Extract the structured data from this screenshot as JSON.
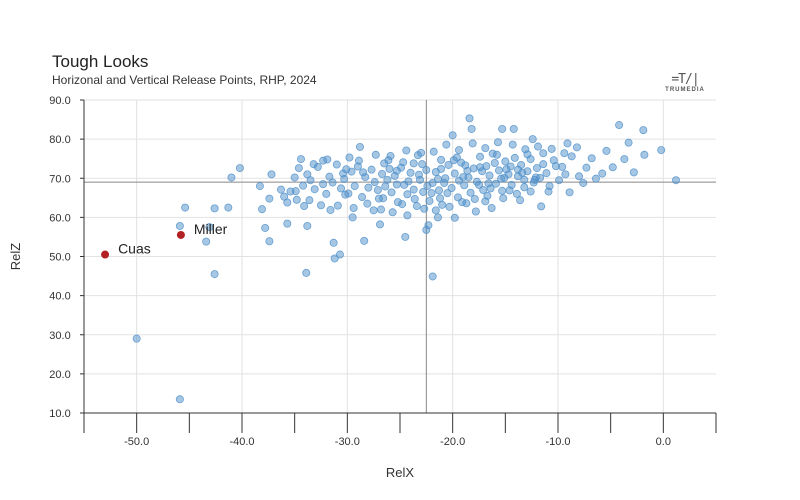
{
  "chart_data": {
    "type": "scatter",
    "title": "Tough Looks",
    "subtitle": "Horizonal and Vertical Release Points, RHP, 2024",
    "xlabel": "RelX",
    "ylabel": "RelZ",
    "xlim": [
      -55,
      5
    ],
    "ylim": [
      10,
      90
    ],
    "x_ticks": [
      -50,
      -40,
      -30,
      -20,
      -10,
      0
    ],
    "x_tick_labels": [
      "-50.0",
      "-40.0",
      "-30.0",
      "-20.0",
      "-10.0",
      "0.0"
    ],
    "y_ticks": [
      10,
      20,
      30,
      40,
      50,
      60,
      70,
      80,
      90
    ],
    "y_tick_labels": [
      "10.0",
      "20.0",
      "30.0",
      "40.0",
      "50.0",
      "60.0",
      "70.0",
      "80.0",
      "90.0"
    ],
    "grid": true,
    "reference_lines": {
      "x": -22.5,
      "y": 69
    },
    "colors": {
      "points": "#4d8fc9",
      "highlight": "#b22222",
      "grid": "#e2e2e2",
      "reference": "#888888"
    },
    "highlighted": [
      {
        "label": "Cuas",
        "x": -53,
        "y": 50.5
      },
      {
        "label": "Miller",
        "x": -45.8,
        "y": 55.5
      }
    ],
    "points": [
      [
        -50.0,
        29.0
      ],
      [
        -45.9,
        13.5
      ],
      [
        -45.9,
        57.8
      ],
      [
        -45.4,
        62.5
      ],
      [
        -43.4,
        53.8
      ],
      [
        -43.1,
        57.5
      ],
      [
        -42.6,
        45.5
      ],
      [
        -42.6,
        62.3
      ],
      [
        -41.3,
        62.5
      ],
      [
        -41.0,
        70.2
      ],
      [
        -40.2,
        72.6
      ],
      [
        -38.3,
        68.0
      ],
      [
        -38.1,
        62.1
      ],
      [
        -37.8,
        57.3
      ],
      [
        -37.4,
        53.9
      ],
      [
        -37.4,
        64.8
      ],
      [
        -37.2,
        71.0
      ],
      [
        -35.7,
        58.4
      ],
      [
        -35.4,
        66.6
      ],
      [
        -34.8,
        64.5
      ],
      [
        -34.4,
        74.9
      ],
      [
        -34.1,
        62.9
      ],
      [
        -33.9,
        45.8
      ],
      [
        -33.8,
        57.8
      ],
      [
        -33.2,
        73.6
      ],
      [
        -32.3,
        74.5
      ],
      [
        -31.6,
        61.9
      ],
      [
        -31.3,
        53.5
      ],
      [
        -31.2,
        49.5
      ],
      [
        -30.7,
        50.5
      ],
      [
        -30.4,
        71.2
      ],
      [
        -30.2,
        65.8
      ],
      [
        -29.5,
        60.0
      ],
      [
        -28.8,
        78.0
      ],
      [
        -28.4,
        54.0
      ],
      [
        -27.5,
        61.8
      ],
      [
        -26.9,
        58.2
      ],
      [
        -26.6,
        64.9
      ],
      [
        -26.0,
        72.4
      ],
      [
        -25.3,
        68.4
      ],
      [
        -24.5,
        55.0
      ],
      [
        -24.3,
        60.5
      ],
      [
        -23.7,
        73.8
      ],
      [
        -23.0,
        76.5
      ],
      [
        -22.5,
        56.8
      ],
      [
        -22.3,
        58.0
      ],
      [
        -22.0,
        66.2
      ],
      [
        -21.9,
        44.9
      ],
      [
        -21.6,
        61.8
      ],
      [
        -21.4,
        60.0
      ],
      [
        -21.1,
        74.7
      ],
      [
        -20.8,
        68.8
      ],
      [
        -20.0,
        81.0
      ],
      [
        -19.8,
        59.9
      ],
      [
        -19.4,
        77.2
      ],
      [
        -19.0,
        70.3
      ],
      [
        -18.7,
        63.6
      ],
      [
        -18.4,
        85.3
      ],
      [
        -18.2,
        82.6
      ],
      [
        -17.8,
        61.5
      ],
      [
        -17.4,
        72.8
      ],
      [
        -16.9,
        64.1
      ],
      [
        -16.6,
        68.7
      ],
      [
        -16.3,
        62.4
      ],
      [
        -15.8,
        76.0
      ],
      [
        -15.3,
        82.6
      ],
      [
        -15.1,
        70.1
      ],
      [
        -14.6,
        66.9
      ],
      [
        -14.2,
        82.6
      ],
      [
        -13.8,
        72.2
      ],
      [
        -13.6,
        64.4
      ],
      [
        -13.2,
        69.6
      ],
      [
        -12.9,
        76.1
      ],
      [
        -12.4,
        80.0
      ],
      [
        -12.1,
        70.2
      ],
      [
        -11.6,
        62.8
      ],
      [
        -11.4,
        73.6
      ],
      [
        -10.9,
        66.6
      ],
      [
        -10.4,
        74.6
      ],
      [
        -9.9,
        69.5
      ],
      [
        -9.6,
        72.9
      ],
      [
        -9.1,
        78.9
      ],
      [
        -8.9,
        66.4
      ],
      [
        -8.7,
        75.6
      ],
      [
        -8.0,
        70.5
      ],
      [
        -7.6,
        68.8
      ],
      [
        -7.3,
        72.7
      ],
      [
        -6.8,
        75.1
      ],
      [
        -6.4,
        69.9
      ],
      [
        -5.8,
        71.2
      ],
      [
        -5.4,
        77.0
      ],
      [
        -4.8,
        72.8
      ],
      [
        -4.2,
        83.6
      ],
      [
        -3.7,
        74.9
      ],
      [
        -3.3,
        79.1
      ],
      [
        -2.8,
        71.5
      ],
      [
        -1.9,
        82.3
      ],
      [
        -1.8,
        76.0
      ],
      [
        -0.2,
        77.2
      ],
      [
        1.2,
        69.5
      ],
      [
        -35.0,
        70.2
      ],
      [
        -34.6,
        72.6
      ],
      [
        -34.2,
        68.1
      ],
      [
        -33.8,
        71.0
      ],
      [
        -33.5,
        69.5
      ],
      [
        -33.1,
        67.2
      ],
      [
        -32.8,
        72.9
      ],
      [
        -32.3,
        68.5
      ],
      [
        -32.0,
        66.0
      ],
      [
        -31.7,
        70.4
      ],
      [
        -31.4,
        68.9
      ],
      [
        -31.0,
        73.5
      ],
      [
        -30.6,
        67.4
      ],
      [
        -30.3,
        69.8
      ],
      [
        -29.9,
        66.1
      ],
      [
        -29.6,
        71.7
      ],
      [
        -29.3,
        68.0
      ],
      [
        -29.0,
        73.0
      ],
      [
        -28.6,
        65.2
      ],
      [
        -28.3,
        70.3
      ],
      [
        -28.0,
        67.6
      ],
      [
        -27.7,
        72.2
      ],
      [
        -27.4,
        69.0
      ],
      [
        -27.0,
        64.8
      ],
      [
        -26.7,
        71.1
      ],
      [
        -26.4,
        67.9
      ],
      [
        -26.1,
        74.6
      ],
      [
        -25.8,
        66.4
      ],
      [
        -25.5,
        70.6
      ],
      [
        -25.2,
        63.9
      ],
      [
        -24.9,
        72.7
      ],
      [
        -24.6,
        68.3
      ],
      [
        -24.3,
        65.9
      ],
      [
        -24.0,
        71.4
      ],
      [
        -23.7,
        67.1
      ],
      [
        -23.4,
        62.9
      ],
      [
        -23.1,
        69.6
      ],
      [
        -22.8,
        66.5
      ],
      [
        -22.5,
        72.1
      ],
      [
        -22.2,
        64.2
      ],
      [
        -21.9,
        68.8
      ],
      [
        -21.6,
        71.6
      ],
      [
        -21.3,
        66.9
      ],
      [
        -21.0,
        63.2
      ],
      [
        -20.7,
        70.0
      ],
      [
        -20.4,
        73.4
      ],
      [
        -20.1,
        67.5
      ],
      [
        -19.8,
        71.2
      ],
      [
        -19.5,
        65.1
      ],
      [
        -19.2,
        74.0
      ],
      [
        -18.9,
        68.2
      ],
      [
        -18.6,
        71.9
      ],
      [
        -18.3,
        66.3
      ],
      [
        -18.0,
        72.5
      ],
      [
        -17.7,
        69.1
      ],
      [
        -17.4,
        75.5
      ],
      [
        -17.1,
        67.0
      ],
      [
        -16.8,
        73.1
      ],
      [
        -16.5,
        70.7
      ],
      [
        -16.2,
        76.3
      ],
      [
        -15.9,
        68.6
      ],
      [
        -15.6,
        72.0
      ],
      [
        -15.3,
        66.8
      ],
      [
        -15.0,
        74.3
      ],
      [
        -14.7,
        71.0
      ],
      [
        -14.4,
        68.3
      ],
      [
        -14.1,
        75.2
      ],
      [
        -13.8,
        70.5
      ],
      [
        -13.5,
        73.4
      ],
      [
        -13.2,
        67.7
      ],
      [
        -12.9,
        71.8
      ],
      [
        -12.6,
        74.9
      ],
      [
        -12.3,
        68.9
      ],
      [
        -12.0,
        72.6
      ],
      [
        -11.7,
        70.1
      ],
      [
        -11.4,
        76.4
      ],
      [
        -11.1,
        71.3
      ],
      [
        -10.8,
        68.0
      ],
      [
        -33.6,
        64.4
      ],
      [
        -30.9,
        63.0
      ],
      [
        -29.4,
        62.4
      ],
      [
        -28.1,
        63.5
      ],
      [
        -26.8,
        62.0
      ],
      [
        -25.7,
        61.3
      ],
      [
        -24.8,
        63.4
      ],
      [
        -23.6,
        64.7
      ],
      [
        -22.7,
        62.2
      ],
      [
        -21.2,
        64.9
      ],
      [
        -20.3,
        62.7
      ],
      [
        -19.1,
        63.9
      ],
      [
        -17.9,
        64.7
      ],
      [
        -16.7,
        65.5
      ],
      [
        -15.2,
        64.9
      ],
      [
        -13.9,
        66.0
      ],
      [
        -12.6,
        66.6
      ],
      [
        -29.8,
        75.3
      ],
      [
        -28.9,
        74.5
      ],
      [
        -27.3,
        76.0
      ],
      [
        -25.9,
        75.7
      ],
      [
        -24.4,
        77.1
      ],
      [
        -23.3,
        75.9
      ],
      [
        -21.8,
        76.8
      ],
      [
        -20.6,
        78.6
      ],
      [
        -19.6,
        75.3
      ],
      [
        -18.1,
        78.9
      ],
      [
        -16.9,
        77.7
      ],
      [
        -15.7,
        79.2
      ],
      [
        -14.3,
        78.6
      ],
      [
        -13.1,
        77.4
      ],
      [
        -11.9,
        78.1
      ],
      [
        -10.6,
        77.5
      ],
      [
        -9.4,
        76.4
      ],
      [
        -8.2,
        77.9
      ],
      [
        -36.3,
        67.1
      ],
      [
        -36.0,
        65.3
      ],
      [
        -35.7,
        63.8
      ],
      [
        -34.9,
        66.7
      ],
      [
        -32.5,
        63.1
      ],
      [
        -27.1,
        67.0
      ],
      [
        -26.2,
        69.6
      ],
      [
        -25.3,
        71.9
      ],
      [
        -24.2,
        69.2
      ],
      [
        -23.2,
        70.9
      ],
      [
        -22.4,
        68.0
      ],
      [
        -21.4,
        69.8
      ],
      [
        -20.5,
        66.2
      ],
      [
        -19.4,
        69.4
      ],
      [
        -18.5,
        70.2
      ],
      [
        -17.5,
        68.3
      ],
      [
        -16.4,
        67.4
      ],
      [
        -15.4,
        69.9
      ],
      [
        -14.5,
        73.0
      ],
      [
        -13.4,
        71.4
      ],
      [
        -12.2,
        69.6
      ],
      [
        -10.2,
        73.1
      ],
      [
        -9.3,
        71.0
      ],
      [
        -31.9,
        74.8
      ],
      [
        -30.1,
        72.3
      ],
      [
        -28.5,
        71.5
      ],
      [
        -26.5,
        73.8
      ],
      [
        -24.7,
        74.1
      ],
      [
        -22.9,
        73.6
      ],
      [
        -21.1,
        72.4
      ],
      [
        -19.9,
        74.6
      ],
      [
        -18.8,
        73.3
      ],
      [
        -17.2,
        71.8
      ],
      [
        -16.0,
        73.9
      ],
      [
        -14.9,
        72.3
      ]
    ]
  },
  "logo": {
    "mark": "=T/|",
    "text": "TRUMEDIA"
  }
}
